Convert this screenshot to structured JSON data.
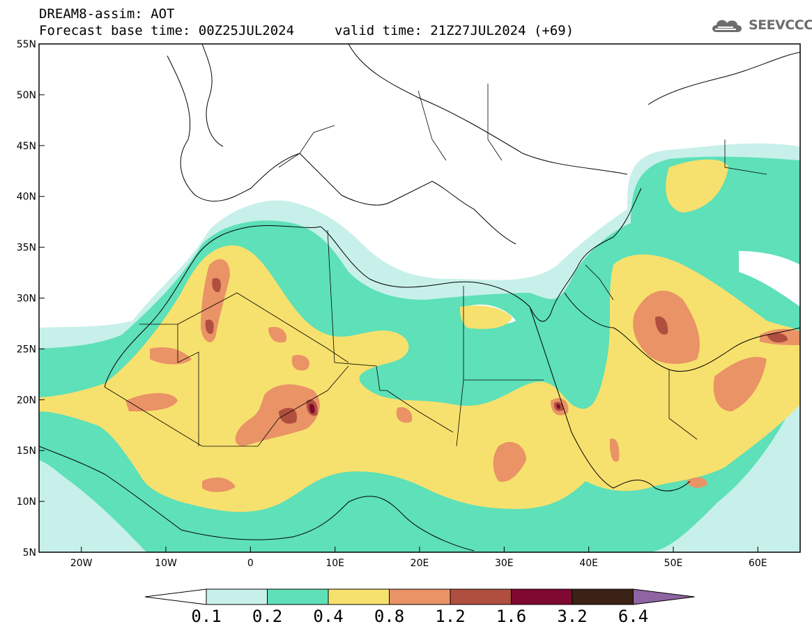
{
  "header": {
    "title": "DREAM8-assim: AOT",
    "base_time": "Forecast base time: 00Z25JUL2024",
    "valid_time": "valid time: 21Z27JUL2024 (+69)"
  },
  "logo": {
    "text": "SEEVCCC",
    "icon": "cloud-logo-icon"
  },
  "map": {
    "variable": "Aerosol optical thickness",
    "lon_range": [
      -25,
      65
    ],
    "lat_range": [
      5,
      55
    ],
    "lat_ticks": [
      "5N",
      "10N",
      "15N",
      "20N",
      "25N",
      "30N",
      "35N",
      "40N",
      "45N",
      "50N",
      "55N"
    ],
    "lon_ticks": [
      "20W",
      "10W",
      "0",
      "10E",
      "20E",
      "30E",
      "40E",
      "50E",
      "60E"
    ]
  },
  "colorbar": {
    "levels": [
      "0.1",
      "0.2",
      "0.4",
      "0.8",
      "1.2",
      "1.6",
      "3.2",
      "6.4"
    ],
    "colors": [
      "#ffffff",
      "#c8f0ea",
      "#5ee0b8",
      "#f7e16e",
      "#e99366",
      "#b04e3f",
      "#7e0830",
      "#3a2315",
      "#8e64a3"
    ]
  }
}
